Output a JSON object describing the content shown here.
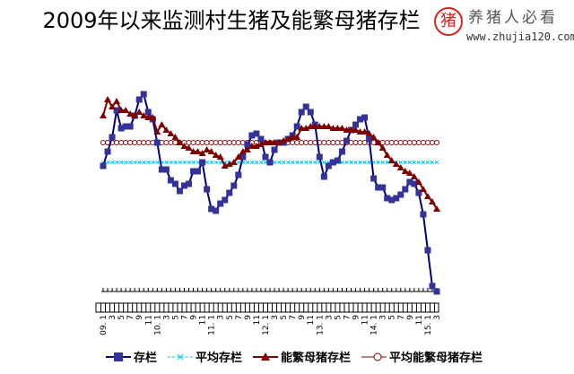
{
  "watermark": {
    "logo_char": "猪",
    "brand": "养猪人必看",
    "url": "www.zhujia120.com"
  },
  "chart_data": {
    "type": "line",
    "title": "2009年以来监测村生猪及能繁母猪存栏",
    "xlabel": "",
    "ylabel": "",
    "ylim": [
      0,
      112
    ],
    "grid": false,
    "legend_position": "bottom",
    "start_year": 9,
    "start_month": 1,
    "series": [
      {
        "name": "存栏",
        "color": "#000080",
        "marker": "square",
        "marker_color": "#333399",
        "values": [
          70,
          78,
          86,
          101,
          91,
          92,
          92,
          98,
          107,
          110,
          100,
          96,
          83,
          68,
          68,
          62,
          60,
          56,
          59,
          60,
          67,
          67,
          72,
          57,
          46,
          45,
          49,
          51,
          55,
          59,
          65,
          75,
          82,
          87,
          88,
          85,
          75,
          72,
          79,
          83,
          83,
          85,
          87,
          92,
          100,
          103,
          100,
          93,
          75,
          64,
          70,
          72,
          73,
          78,
          84,
          90,
          93,
          96,
          97,
          85,
          63,
          58,
          58,
          52,
          51,
          52,
          54,
          57,
          61,
          60,
          55,
          43,
          23,
          3,
          0
        ]
      },
      {
        "name": "平均存栏",
        "color": "#00ccff",
        "marker": "x",
        "dashed": true,
        "constant": 72
      },
      {
        "name": "能繁母猪存栏",
        "color": "#800000",
        "marker": "triangle",
        "values": [
          98,
          107,
          103,
          106,
          101,
          101,
          99,
          98,
          100,
          98,
          97,
          97,
          89,
          93,
          90,
          88,
          86,
          83,
          81,
          80,
          78,
          78,
          77,
          79,
          78,
          76,
          75,
          70,
          71,
          72,
          75,
          78,
          79,
          81,
          81,
          82,
          83,
          83,
          83,
          83,
          84,
          85,
          86,
          86,
          91,
          91,
          92,
          92,
          92,
          92,
          92,
          91,
          91,
          91,
          90,
          90,
          90,
          89,
          89,
          88,
          86,
          83,
          80,
          76,
          73,
          71,
          69,
          67,
          66,
          64,
          61,
          57,
          53,
          50,
          46
        ]
      },
      {
        "name": "平均能繁母猪存栏",
        "color": "#800000",
        "marker": "circle",
        "constant": 83
      }
    ]
  }
}
